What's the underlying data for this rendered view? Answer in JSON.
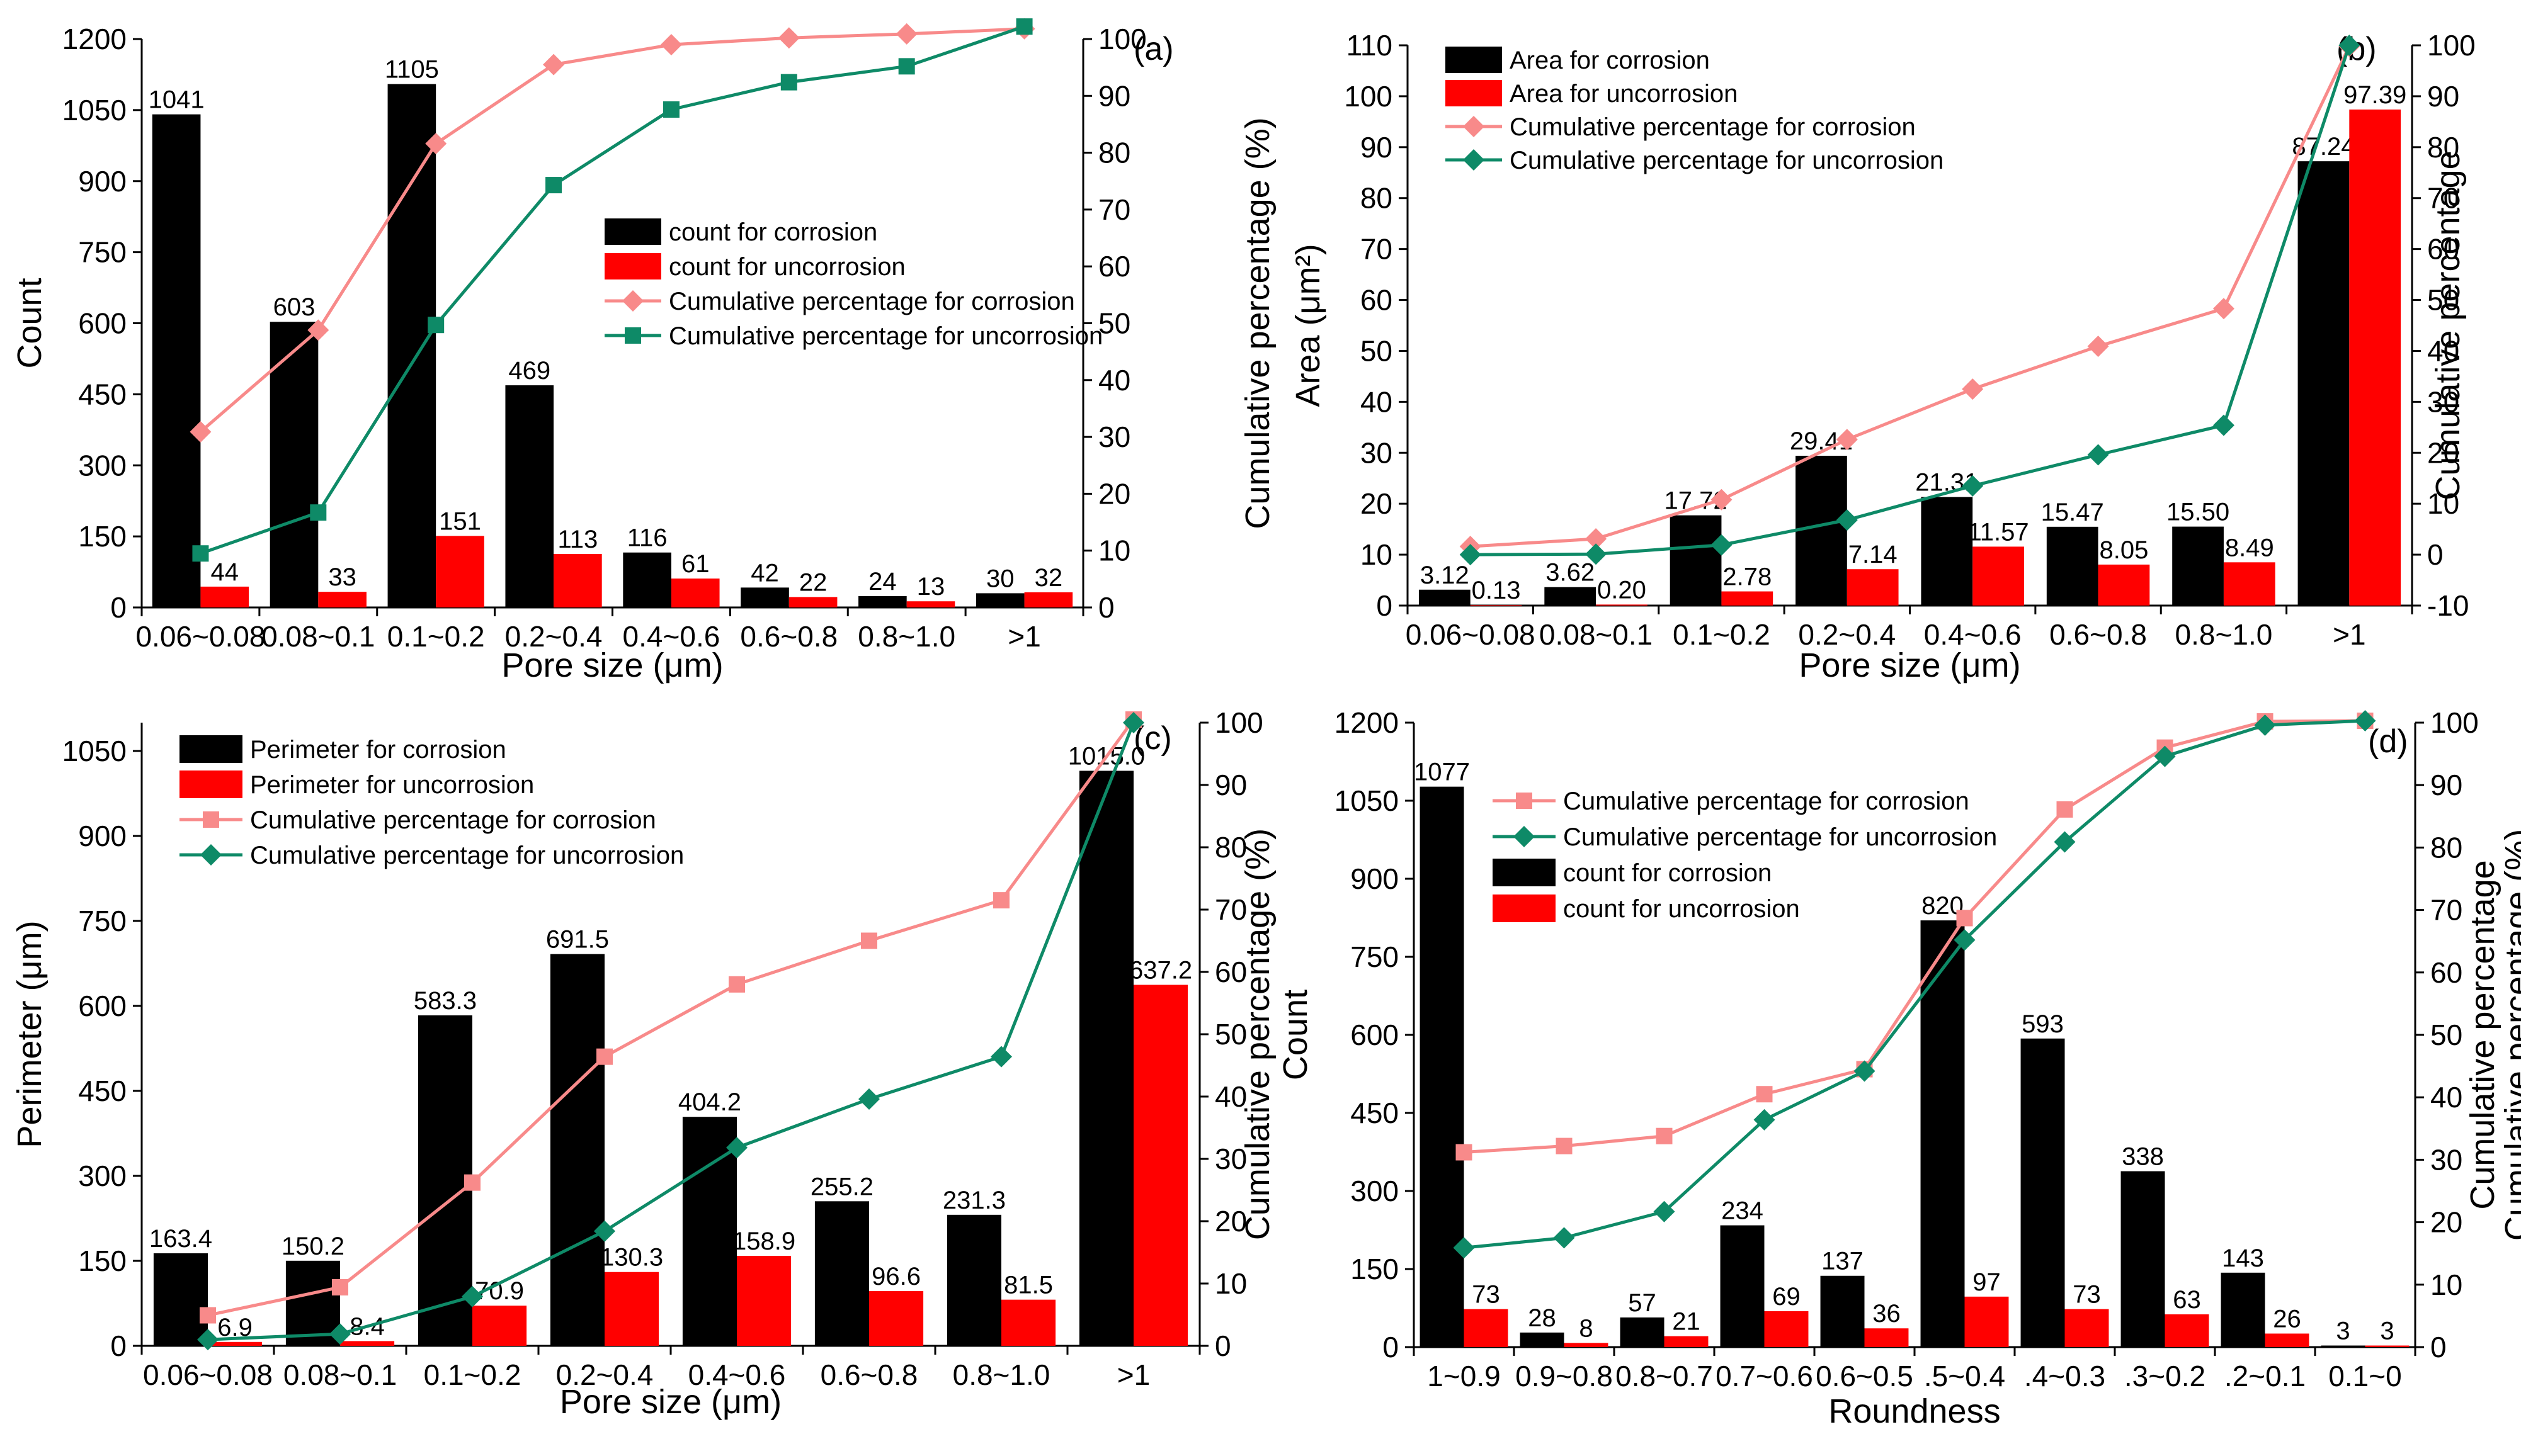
{
  "colors": {
    "corrosion_bar": "#000000",
    "uncorrosion_bar": "#ff0000",
    "corrosion_line": "#f88a8a",
    "uncorrosion_line": "#0e8a67"
  },
  "chart_data": [
    {
      "type": "bar",
      "tag": "(a)",
      "xlabel": "Pore size (μm)",
      "ylabel": "Count",
      "y2label": "Cumulative percentage (%)",
      "ylim": [
        0,
        1200
      ],
      "yticks": [
        "0",
        "150",
        "300",
        "450",
        "600",
        "750",
        "900",
        "1050",
        "1200"
      ],
      "y2lim": [
        0,
        100
      ],
      "y2ticks": [
        "0",
        "10",
        "20",
        "30",
        "40",
        "50",
        "60",
        "70",
        "80",
        "90",
        "100"
      ],
      "categories": [
        "0.06~0.08",
        "0.08~0.1",
        "0.1~0.2",
        "0.2~0.4",
        "0.4~0.6",
        "0.6~0.8",
        "0.8~1.0",
        ">1"
      ],
      "series": [
        {
          "name": "count for corrosion",
          "kind": "bar",
          "values": [
            1041,
            603,
            1105,
            469,
            116,
            42,
            24,
            30
          ],
          "labels": [
            "1041",
            "603",
            "1105",
            "469",
            "116",
            "42",
            "24",
            "30"
          ]
        },
        {
          "name": "count for uncorrosion",
          "kind": "bar",
          "values": [
            44,
            33,
            151,
            113,
            61,
            22,
            13,
            32
          ],
          "labels": [
            "44",
            "33",
            "151",
            "113",
            "61",
            "22",
            "13",
            "32"
          ]
        },
        {
          "name": "Cumulative percentage for corrosion",
          "kind": "line",
          "axis": "y2",
          "marker": "diamond",
          "values": [
            30.9,
            48.8,
            81.6,
            95.5,
            99,
            100.2,
            100.9,
            101.8
          ]
        },
        {
          "name": "Cumulative percentage for uncorrosion",
          "kind": "line",
          "axis": "y2",
          "marker": "square",
          "values": [
            9.5,
            16.7,
            49.7,
            74.3,
            87.6,
            92.4,
            95.2,
            102.2
          ]
        }
      ],
      "legend_position": "center-right",
      "legend_order": [
        "count for corrosion",
        "count for uncorrosion",
        "Cumulative percentage for corrosion",
        "Cumulative percentage for uncorrosion"
      ]
    },
    {
      "type": "bar",
      "tag": "(b)",
      "xlabel": "Pore size (μm)",
      "ylabel": "Area (μm²)",
      "y2label": "Cumulative percentage",
      "ylim": [
        0,
        110
      ],
      "yticks": [
        "0",
        "10",
        "20",
        "30",
        "40",
        "50",
        "60",
        "70",
        "80",
        "90",
        "100",
        "110"
      ],
      "y2lim": [
        -10,
        100
      ],
      "y2ticks": [
        "-10",
        "0",
        "10",
        "20",
        "30",
        "40",
        "50",
        "60",
        "70",
        "80",
        "90",
        "100"
      ],
      "categories": [
        "0.06~0.08",
        "0.08~0.1",
        "0.1~0.2",
        "0.2~0.4",
        "0.4~0.6",
        "0.6~0.8",
        "0.8~1.0",
        ">1"
      ],
      "series": [
        {
          "name": "Area for corrosion",
          "kind": "bar",
          "values": [
            3.12,
            3.62,
            17.72,
            29.41,
            21.31,
            15.47,
            15.5,
            87.24
          ],
          "labels": [
            "3.12",
            "3.62",
            "17.72",
            "29.41",
            "21.31",
            "15.47",
            "15.50",
            "87.24"
          ]
        },
        {
          "name": "Area for uncorrosion",
          "kind": "bar",
          "values": [
            0.13,
            0.2,
            2.78,
            7.14,
            11.57,
            8.05,
            8.49,
            97.39
          ],
          "labels": [
            "0.13",
            "0.20",
            "2.78",
            "7.14",
            "11.57",
            "8.05",
            "8.49",
            "97.39"
          ]
        },
        {
          "name": "Cumulative percentage for corrosion",
          "kind": "line",
          "axis": "y2",
          "marker": "diamond",
          "values": [
            1.6,
            3.1,
            10.8,
            22.6,
            32.5,
            40.9,
            48.3,
            99.8
          ]
        },
        {
          "name": "Cumulative percentage for uncorrosion",
          "kind": "line",
          "axis": "y2",
          "marker": "diamond",
          "values": [
            0,
            0.1,
            1.9,
            6.8,
            13.5,
            19.6,
            25.4,
            100
          ]
        }
      ],
      "legend_position": "top-left",
      "legend_order": [
        "Area for corrosion",
        "Area for uncorrosion",
        "Cumulative percentage for corrosion",
        "Cumulative percentage for uncorrosion"
      ]
    },
    {
      "type": "bar",
      "tag": "(c)",
      "xlabel": "Pore size (μm)",
      "ylabel": "Perimeter (μm)",
      "y2label": "Cumulative percentage (%)",
      "ylim": [
        0,
        1100
      ],
      "yticks": [
        "0",
        "150",
        "300",
        "450",
        "600",
        "750",
        "900",
        "1050"
      ],
      "y2lim": [
        0,
        100
      ],
      "y2ticks": [
        "0",
        "10",
        "20",
        "30",
        "40",
        "50",
        "60",
        "70",
        "80",
        "90",
        "100"
      ],
      "categories": [
        "0.06~0.08",
        "0.08~0.1",
        "0.1~0.2",
        "0.2~0.4",
        "0.4~0.6",
        "0.6~0.8",
        "0.8~1.0",
        ">1"
      ],
      "series": [
        {
          "name": "Perimeter for corrosion",
          "kind": "bar",
          "values": [
            163.4,
            150.2,
            583.3,
            691.5,
            404.2,
            255.2,
            231.3,
            1015
          ],
          "labels": [
            "163.4",
            "150.2",
            "583.3",
            "691.5",
            "404.2",
            "255.2",
            "231.3",
            "1015.0"
          ]
        },
        {
          "name": "Perimeter for uncorrosion",
          "kind": "bar",
          "values": [
            6.9,
            8.4,
            70.9,
            130.3,
            158.9,
            96.6,
            81.5,
            637.2
          ],
          "labels": [
            "6.9",
            "8.4",
            "70.9",
            "130.3",
            "158.9",
            "96.6",
            "81.5",
            "637.2"
          ]
        },
        {
          "name": "Cumulative percentage for corrosion",
          "kind": "line",
          "axis": "y2",
          "marker": "square",
          "values": [
            4.9,
            9.4,
            26.2,
            46.4,
            58,
            65,
            71.5,
            100.5
          ]
        },
        {
          "name": "Cumulative percentage for uncorrosion",
          "kind": "line",
          "axis": "y2",
          "marker": "diamond",
          "values": [
            1,
            1.9,
            7.9,
            18.4,
            31.8,
            39.6,
            46.4,
            100
          ]
        }
      ],
      "legend_position": "top-left",
      "legend_order": [
        "Perimeter for corrosion",
        "Perimeter for uncorrosion",
        "Cumulative percentage for corrosion",
        "Cumulative percentage for uncorrosion"
      ]
    },
    {
      "type": "bar",
      "tag": "(d)",
      "xlabel": "Roundness",
      "ylabel": "Count",
      "y2label": "Cumulative percentage",
      "y2label_extra": "Cumulative percentage (%)",
      "ylim": [
        0,
        1200
      ],
      "yticks": [
        "0",
        "150",
        "300",
        "450",
        "600",
        "750",
        "900",
        "1050",
        "1200"
      ],
      "y2lim": [
        0,
        100
      ],
      "y2ticks": [
        "0",
        "10",
        "20",
        "30",
        "40",
        "50",
        "60",
        "70",
        "80",
        "90",
        "100"
      ],
      "categories": [
        "1~0.9",
        "0.9~0.8",
        "0.8~0.7",
        "0.7~0.6",
        "0.6~0.5",
        "0.5~0.4",
        "0.4~0.3",
        "0.3~0.2",
        "0.2~0.1",
        "0.1~0"
      ],
      "category_labels": [
        "1~0.9",
        "0.9~0.8",
        "0.8~0.7",
        "0.7~0.6",
        "0.6~0.5",
        ".5~0.4",
        ".4~0.3",
        ".3~0.2",
        ".2~0.1",
        "0.1~0"
      ],
      "series": [
        {
          "name": "count for corrosion",
          "kind": "bar",
          "values": [
            1077,
            28,
            57,
            234,
            137,
            820,
            593,
            338,
            143,
            3
          ],
          "labels": [
            "1077",
            "28",
            "57",
            "234",
            "137",
            "820",
            "593",
            "338",
            "143",
            "3"
          ]
        },
        {
          "name": "count for uncorrosion",
          "kind": "bar",
          "values": [
            73,
            8,
            21,
            69,
            36,
            97,
            73,
            63,
            26,
            3
          ],
          "labels": [
            "73",
            "8",
            "21",
            "69",
            "36",
            "97",
            "73",
            "63",
            "26",
            "3"
          ]
        },
        {
          "name": "Cumulative percentage for corrosion",
          "kind": "line",
          "axis": "y2",
          "marker": "square",
          "values": [
            31.2,
            32.2,
            33.8,
            40.5,
            44.5,
            68.7,
            86.1,
            96,
            100.2,
            100.3
          ]
        },
        {
          "name": "Cumulative percentage for uncorrosion",
          "kind": "line",
          "axis": "y2",
          "marker": "diamond",
          "values": [
            15.9,
            17.5,
            21.7,
            36.4,
            44.2,
            65.2,
            80.9,
            94.6,
            99.6,
            100.3
          ]
        }
      ],
      "legend_position": "top-center",
      "legend_order": [
        "Cumulative percentage for corrosion",
        "Cumulative percentage for uncorrosion",
        "count for corrosion",
        "count for uncorrosion"
      ]
    }
  ]
}
